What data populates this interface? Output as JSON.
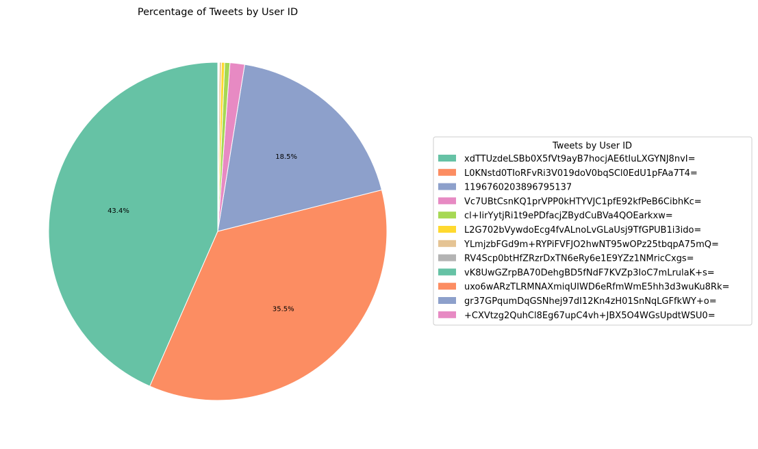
{
  "chart_data": {
    "type": "pie",
    "title": "Percentage of Tweets by User ID",
    "start_angle_deg": 90,
    "direction": "counterclockwise",
    "legend": {
      "title": "Tweets by User ID",
      "placement": "right"
    },
    "slices": [
      {
        "label": "xdTTUzdeLSBb0X5fVt9ayB7hocjAE6tIuLXGYNJ8nvI=",
        "value": 43.4,
        "color": "#66c2a5",
        "show_pct": true
      },
      {
        "label": "L0KNstd0TIoRFvRi3V019doV0bqSCl0EdU1pFAa7T4=",
        "value": 35.5,
        "color": "#fc8d62",
        "show_pct": true
      },
      {
        "label": "1196760203896795137",
        "value": 18.5,
        "color": "#8da0cb",
        "show_pct": true
      },
      {
        "label": "Vc7UBtCsnKQ1prVPP0kHTYVJC1pfE92kfPeB6CibhKc=",
        "value": 1.4,
        "color": "#e78ac3",
        "show_pct": false
      },
      {
        "label": "cl+IirYytjRi1t9ePDfacjZBydCuBVa4QOEarkxw=",
        "value": 0.5,
        "color": "#a6d854",
        "show_pct": false
      },
      {
        "label": "L2G702bVywdoEcg4fvALnoLvGLaUsj9TfGPUB1i3ido=",
        "value": 0.3,
        "color": "#ffd92f",
        "show_pct": false
      },
      {
        "label": "YLmjzbFGd9m+RYPiFVFJO2hwNT95wOPz25tbqpA75mQ=",
        "value": 0.2,
        "color": "#e5c494",
        "show_pct": false
      },
      {
        "label": "RV4Scp0btHfZRzrDxTN6eRy6e1E9YZz1NMricCxgs=",
        "value": 0.05,
        "color": "#b3b3b3",
        "show_pct": false
      },
      {
        "label": "vK8UwGZrpBA70DehgBD5fNdF7KVZp3IoC7mLrulaK+s=",
        "value": 0.04,
        "color": "#66c2a5",
        "show_pct": false
      },
      {
        "label": "uxo6wARzTLRMNAXmiqUIWD6eRfmWmE5hh3d3wuKu8Rk=",
        "value": 0.03,
        "color": "#fc8d62",
        "show_pct": false
      },
      {
        "label": "gr37GPqumDqGSNhej97dI12Kn4zH01SnNqLGFfkWY+o=",
        "value": 0.02,
        "color": "#8da0cb",
        "show_pct": false
      },
      {
        "label": "+CXVtzg2QuhCl8Eg67upC4vh+JBX5O4WGsUpdtWSU0=",
        "value": 0.01,
        "color": "#e78ac3",
        "show_pct": false
      }
    ]
  }
}
